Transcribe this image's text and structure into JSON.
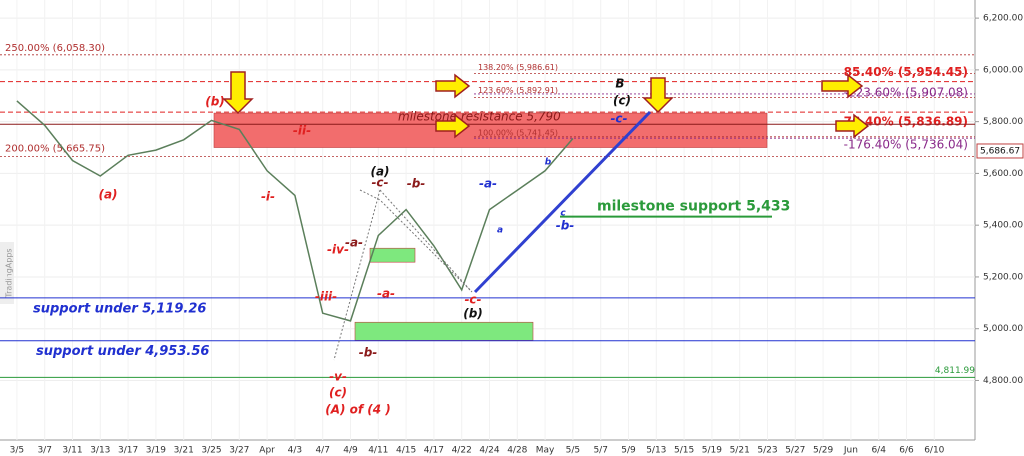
{
  "chart_data": {
    "type": "line",
    "watermark": "TradingApps",
    "categories": [
      "3/5",
      "3/7",
      "3/11",
      "3/13",
      "3/17",
      "3/19",
      "3/21",
      "3/25",
      "3/27",
      "Apr",
      "4/3",
      "4/7",
      "4/9",
      "4/11",
      "4/15",
      "4/17",
      "4/22",
      "4/24",
      "4/28",
      "May",
      "5/5",
      "5/7",
      "5/9",
      "5/13",
      "5/15",
      "5/19",
      "5/21",
      "5/23",
      "5/27",
      "5/29",
      "Jun",
      "6/4",
      "6/6",
      "6/10"
    ],
    "series": [
      {
        "name": "Price",
        "color": "#5b7f5b",
        "values": [
          5880,
          5786,
          5650,
          5590,
          5670,
          5690,
          5730,
          5805,
          5770,
          5610,
          5515,
          5060,
          5030,
          5360,
          5460,
          5320,
          5150,
          5460,
          5535,
          5610,
          5735,
          null,
          null,
          null,
          null,
          null,
          null,
          null,
          null,
          null,
          null,
          null,
          null,
          null
        ]
      }
    ],
    "ylim": [
      4570,
      6270
    ],
    "yticks": [
      {
        "value": 6200,
        "label": "6,200.00"
      },
      {
        "value": 6000,
        "label": "6,000.00"
      },
      {
        "value": 5800,
        "label": "5,800.00"
      },
      {
        "value": 5600,
        "label": "5,600.00"
      },
      {
        "value": 5400,
        "label": "5,400.00"
      },
      {
        "value": 5200,
        "label": "5,200.00"
      },
      {
        "value": 5000,
        "label": "5,000.00"
      },
      {
        "value": 4800,
        "label": "4,800.00"
      }
    ],
    "grid": true,
    "last": {
      "value": 5686.67,
      "label": "5,686.67"
    },
    "zones": [
      {
        "low": 5700,
        "high": 5833,
        "color": "#f26d6d"
      },
      {
        "low": 5257,
        "high": 5311,
        "color": "#7ee87e"
      },
      {
        "low": 4955,
        "high": 5025,
        "color": "#7ee87e"
      }
    ],
    "levels": [
      {
        "value": 6058.3,
        "label": "250.00% (6,058.30)",
        "color": "#b03030"
      },
      {
        "value": 5986.61,
        "label": "138.20% (5,986.61)",
        "color": "#b03030"
      },
      {
        "value": 5954.45,
        "label": "85.40% (5,954.45)",
        "color": "#e02020"
      },
      {
        "value": 5907.08,
        "label": "-223.60% (5,907.08)",
        "color": "#8a2a8a"
      },
      {
        "value": 5892.91,
        "label": "123.60% (5,892.91)",
        "color": "#b03030"
      },
      {
        "value": 5836.89,
        "label": "76.40% (5,836.89)",
        "color": "#e02020"
      },
      {
        "value": 5790,
        "label": "milestone resistance 5,790",
        "color": "#8b1a1a"
      },
      {
        "value": 5741.45,
        "label": "100.00% (5,741.45)",
        "color": "#b03030"
      },
      {
        "value": 5736.04,
        "label": "-176.40% (5,736.04)",
        "color": "#8a2a8a"
      },
      {
        "value": 5665.75,
        "label": "200.00% (5,665.75)",
        "color": "#b03030"
      },
      {
        "value": 5433,
        "label": "milestone support 5,433",
        "color": "#2a9a3a"
      },
      {
        "value": 5119.26,
        "label": "support under 5,119.26",
        "color": "#2030d0"
      },
      {
        "value": 4953.56,
        "label": "support under 4,953.56",
        "color": "#2030d0"
      },
      {
        "value": 4811.99,
        "label": "4,811.99",
        "color": "#2a9a3a"
      }
    ],
    "annotations": [
      {
        "text": "(a)",
        "color": "#e02020"
      },
      {
        "text": "(b)",
        "color": "#e02020"
      },
      {
        "text": "-i-",
        "color": "#e02020"
      },
      {
        "text": "-ii-",
        "color": "#e02020"
      },
      {
        "text": "-iii-",
        "color": "#e02020"
      },
      {
        "text": "-iv-",
        "color": "#e02020"
      },
      {
        "text": "-v-",
        "color": "#e02020"
      },
      {
        "text": "(c)",
        "color": "#e02020"
      },
      {
        "text": "(A) of (4 )",
        "color": "#e02020"
      },
      {
        "text": "-a-",
        "color": "#8b1a1a"
      },
      {
        "text": "-b-",
        "color": "#8b1a1a"
      },
      {
        "text": "(a)",
        "color": "#111111"
      },
      {
        "text": "-c-",
        "color": "#8b1a1a"
      },
      {
        "text": "-b-",
        "color": "#8b1a1a"
      },
      {
        "text": "-a-",
        "color": "#e02020"
      },
      {
        "text": "-c-",
        "color": "#e02020"
      },
      {
        "text": "(b)",
        "color": "#111111"
      },
      {
        "text": "-a-",
        "color": "#2030d0"
      },
      {
        "text": "a",
        "color": "#2030d0"
      },
      {
        "text": "b",
        "color": "#2030d0"
      },
      {
        "text": "c",
        "color": "#2030d0"
      },
      {
        "text": "-b-",
        "color": "#2030d0"
      },
      {
        "text": "B",
        "color": "#111111"
      },
      {
        "text": "(c)",
        "color": "#111111"
      },
      {
        "text": "-c-",
        "color": "#2030d0"
      }
    ]
  }
}
